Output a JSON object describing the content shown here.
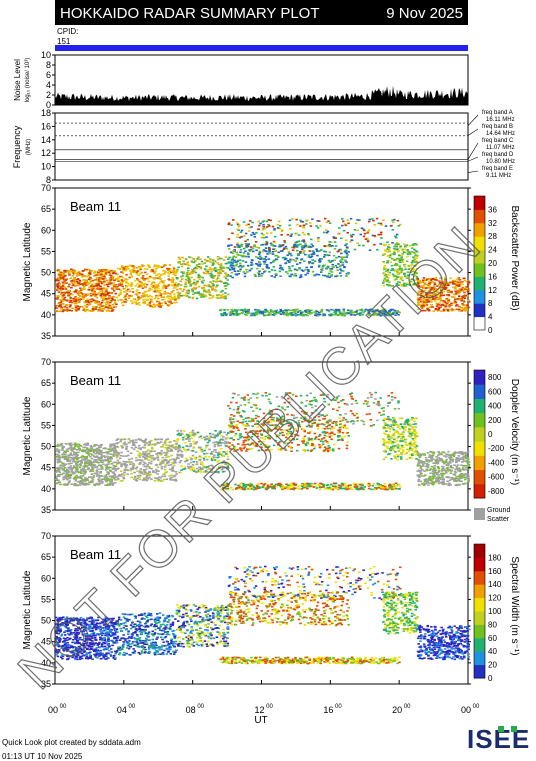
{
  "header": {
    "title": "HOKKAIDO RADAR SUMMARY PLOT",
    "date": "9 Nov 2025"
  },
  "cpid": {
    "label": "CPID:",
    "value": "151"
  },
  "noise_panel": {
    "ylabel": "Noise Level",
    "ylabel_sub": "log₁₀ (noise/ 10³)",
    "ticks": [
      "0",
      "2",
      "4",
      "6",
      "8",
      "10"
    ]
  },
  "freq_panel": {
    "ylabel": "Frequency",
    "ylabel_sub": "(MHz)",
    "ticks": [
      "8",
      "10",
      "12",
      "14",
      "16",
      "18"
    ],
    "bands": [
      {
        "name": "freq band A",
        "value": "16.11 MHz"
      },
      {
        "name": "freq band B",
        "value": "14.64 MHz"
      },
      {
        "name": "freq band C",
        "value": "11.07 MHz"
      },
      {
        "name": "freq band D",
        "value": "10.80 MHz"
      },
      {
        "name": "freq band E",
        "value": "9.11 MHz"
      }
    ]
  },
  "beam_panels": [
    {
      "beam": "Beam 11",
      "ylabel": "Magnetic Latitude",
      "cbar_label": "Backscatter Power (dB)",
      "cbar_ticks": [
        "0",
        "4",
        "8",
        "12",
        "16",
        "20",
        "24",
        "28",
        "32",
        "36"
      ]
    },
    {
      "beam": "Beam 11",
      "ylabel": "Magnetic Latitude",
      "cbar_label": "Doppler Velocity (m s⁻¹)",
      "cbar_ticks": [
        "-800",
        "-600",
        "-400",
        "-200",
        "0",
        "200",
        "400",
        "600",
        "800"
      ],
      "ground_label": "Ground",
      "ground_label2": "Scatter"
    },
    {
      "beam": "Beam 11",
      "ylabel": "Magnetic Latitude",
      "cbar_label": "Spectral Width (m s⁻¹)",
      "cbar_ticks": [
        "0",
        "20",
        "40",
        "60",
        "80",
        "100",
        "120",
        "140",
        "160",
        "180"
      ]
    }
  ],
  "lat_ticks": [
    "35",
    "40",
    "45",
    "50",
    "55",
    "60",
    "65",
    "70"
  ],
  "x_axis": {
    "label": "UT",
    "ticks": [
      "00",
      "04",
      "08",
      "12",
      "16",
      "20",
      "00"
    ],
    "tick_sup": "00"
  },
  "watermark": "NOT FOR PUBLICATION",
  "footer": {
    "line1": "Quick Look plot created by sddata.adm",
    "line2": "01:13 UT 10 Nov 2025"
  },
  "logo": "ISEE",
  "colors": {
    "banner": "#000000",
    "cpid_bar": "#2222ee",
    "ground": "#a0a0a0"
  },
  "chart_data": [
    {
      "type": "area",
      "title": "Noise Level",
      "x_range_ut_hours": [
        0,
        24
      ],
      "ylim": [
        0,
        10
      ],
      "ylabel": "Noise Level",
      "x": [
        0,
        2,
        4,
        6,
        8,
        10,
        12,
        14,
        16,
        18,
        19.5,
        20,
        22,
        24
      ],
      "values": [
        1.8,
        1.6,
        1.5,
        1.6,
        1.5,
        1.6,
        1.5,
        1.6,
        1.7,
        1.8,
        3.0,
        2.2,
        2.4,
        2.6
      ]
    },
    {
      "type": "line",
      "title": "Frequency",
      "ylim": [
        8,
        18
      ],
      "ylabel": "Frequency (MHz)",
      "bands_mhz": [
        16.11,
        14.64,
        11.07,
        10.8,
        9.11
      ]
    },
    {
      "type": "heatmap",
      "title": "Backscatter Power (dB)",
      "ylim": [
        35,
        70
      ],
      "x_range_ut_hours": [
        0,
        24
      ],
      "crange": [
        0,
        36
      ]
    },
    {
      "type": "heatmap",
      "title": "Doppler Velocity (m s⁻¹)",
      "ylim": [
        35,
        70
      ],
      "x_range_ut_hours": [
        0,
        24
      ],
      "crange": [
        -800,
        800
      ]
    },
    {
      "type": "heatmap",
      "title": "Spectral Width (m s⁻¹)",
      "ylim": [
        35,
        70
      ],
      "x_range_ut_hours": [
        0,
        24
      ],
      "crange": [
        0,
        180
      ]
    }
  ]
}
